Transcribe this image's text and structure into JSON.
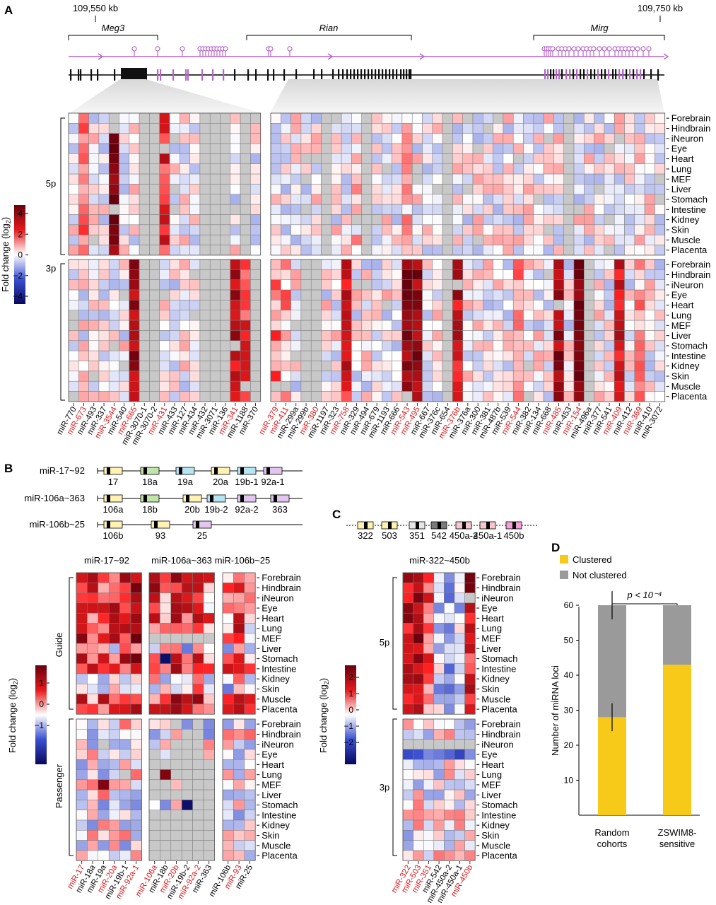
{
  "panel_labels": {
    "a": "A",
    "b": "B",
    "c": "C",
    "d": "D"
  },
  "genome": {
    "left_coord": "109,550 kb",
    "right_coord": "109,750 kb",
    "genes": [
      "Meg3",
      "Rian",
      "Mirg"
    ]
  },
  "tissues": [
    "Forebrain",
    "Hindbrain",
    "iNeuron",
    "Eye",
    "Heart",
    "Lung",
    "MEF",
    "Liver",
    "Stomach",
    "Intestine",
    "Kidney",
    "Skin",
    "Muscle",
    "Placenta"
  ],
  "strand_labels": {
    "five_p": "5p",
    "three_p": "3p",
    "guide": "Guide",
    "passenger": "Passenger"
  },
  "colorbar": {
    "title_text": "Fold change (log",
    "title_sub": "2",
    "title_end": ")",
    "a_ticks": [
      "4",
      "2",
      "0",
      "−2",
      "−4"
    ],
    "b_ticks": [
      "1",
      "0",
      "−1"
    ],
    "c_ticks": [
      "2",
      "1",
      "0",
      "−1",
      "−2"
    ]
  },
  "panel_a": {
    "left_mirnas": [
      {
        "name": "miR-770",
        "red": false
      },
      {
        "name": "miR-673",
        "red": true
      },
      {
        "name": "miR-493",
        "red": false
      },
      {
        "name": "miR-337",
        "red": false
      },
      {
        "name": "miR-3544",
        "red": true
      },
      {
        "name": "miR-540",
        "red": false
      },
      {
        "name": "miR-665",
        "red": true
      },
      {
        "name": "miR-3070-1",
        "red": false
      },
      {
        "name": "miR-3070-2",
        "red": false
      },
      {
        "name": "miR-431",
        "red": true
      },
      {
        "name": "miR-433",
        "red": false
      },
      {
        "name": "miR-127",
        "red": false
      },
      {
        "name": "miR-434",
        "red": false
      },
      {
        "name": "miR-432",
        "red": false
      },
      {
        "name": "miR-3071",
        "red": false
      },
      {
        "name": "miR-136",
        "red": false
      },
      {
        "name": "miR-341",
        "red": true
      },
      {
        "name": "miR-1188",
        "red": false
      },
      {
        "name": "miR-370",
        "red": false
      }
    ],
    "right_mirnas": [
      {
        "name": "miR-379",
        "red": true
      },
      {
        "name": "miR-411",
        "red": true
      },
      {
        "name": "miR-299a",
        "red": false
      },
      {
        "name": "miR-299b",
        "red": false
      },
      {
        "name": "miR-380",
        "red": true
      },
      {
        "name": "miR-1197",
        "red": false
      },
      {
        "name": "miR-323",
        "red": false
      },
      {
        "name": "miR-758",
        "red": true
      },
      {
        "name": "miR-329",
        "red": false
      },
      {
        "name": "miR-494",
        "red": false
      },
      {
        "name": "miR-679",
        "red": false
      },
      {
        "name": "miR-1193",
        "red": false
      },
      {
        "name": "miR-666",
        "red": false
      },
      {
        "name": "miR-543",
        "red": true
      },
      {
        "name": "miR-495",
        "red": true
      },
      {
        "name": "miR-667",
        "red": false
      },
      {
        "name": "miR-376c",
        "red": false
      },
      {
        "name": "miR-654",
        "red": false
      },
      {
        "name": "miR-376b",
        "red": true
      },
      {
        "name": "miR-376a",
        "red": false
      },
      {
        "name": "miR-300",
        "red": false
      },
      {
        "name": "miR-381",
        "red": false
      },
      {
        "name": "miR-487b",
        "red": false
      },
      {
        "name": "miR-539",
        "red": false
      },
      {
        "name": "miR-544",
        "red": true
      },
      {
        "name": "miR-382",
        "red": false
      },
      {
        "name": "miR-134",
        "red": false
      },
      {
        "name": "miR-668",
        "red": false
      },
      {
        "name": "miR-485",
        "red": true
      },
      {
        "name": "miR-453",
        "red": false
      },
      {
        "name": "miR-154",
        "red": true
      },
      {
        "name": "miR-496a",
        "red": false
      },
      {
        "name": "miR-377",
        "red": false
      },
      {
        "name": "miR-541",
        "red": false
      },
      {
        "name": "miR-409",
        "red": true
      },
      {
        "name": "miR-412",
        "red": false
      },
      {
        "name": "miR-369",
        "red": true
      },
      {
        "name": "miR-410",
        "red": false
      },
      {
        "name": "miR-3072",
        "red": false
      }
    ]
  },
  "panel_b": {
    "clusters": [
      {
        "name": "miR-17~92",
        "genes": [
          "17",
          "18a",
          "19a",
          "20a",
          "19b-1",
          "92a-1"
        ]
      },
      {
        "name": "miR-106a~363",
        "genes": [
          "106a",
          "18b",
          "20b",
          "19b-2",
          "92a-2",
          "363"
        ]
      },
      {
        "name": "miR-106b~25",
        "genes": [
          "106b",
          "93",
          "25"
        ]
      }
    ],
    "heatmap_titles": [
      "miR-17~92",
      "miR-106a~363",
      "miR-106b~25"
    ],
    "columns": [
      [
        {
          "name": "miR-17",
          "red": true
        },
        {
          "name": "miR-18a",
          "red": false
        },
        {
          "name": "miR-19a",
          "red": false
        },
        {
          "name": "miR-20a",
          "red": true
        },
        {
          "name": "miR-19b-1",
          "red": false
        },
        {
          "name": "miR-92a-1",
          "red": true
        }
      ],
      [
        {
          "name": "miR-106a",
          "red": true
        },
        {
          "name": "miR-18b",
          "red": false
        },
        {
          "name": "miR-20b",
          "red": true
        },
        {
          "name": "miR-19b-2",
          "red": false
        },
        {
          "name": "miR-92a-2",
          "red": true
        },
        {
          "name": "miR-363",
          "red": false
        }
      ],
      [
        {
          "name": "miR-106b",
          "red": false
        },
        {
          "name": "miR-93",
          "red": true
        },
        {
          "name": "miR-25",
          "red": false
        }
      ]
    ]
  },
  "panel_c": {
    "cluster_title": "miR-322~450b",
    "genes": [
      "322",
      "503",
      "351",
      "542",
      "450a-2",
      "450a-1",
      "450b"
    ],
    "columns": [
      {
        "name": "miR-322",
        "red": true
      },
      {
        "name": "miR-503",
        "red": true
      },
      {
        "name": "miR-351",
        "red": true
      },
      {
        "name": "miR-542",
        "red": false
      },
      {
        "name": "miR-450a-2",
        "red": false
      },
      {
        "name": "miR-450a-1",
        "red": false
      },
      {
        "name": "miR-450b",
        "red": true
      }
    ]
  },
  "chart_data": {
    "type": "bar",
    "categories": [
      "Random\ncohorts",
      "ZSWIM8-\nsensitive"
    ],
    "series": [
      {
        "name": "Clustered",
        "values": [
          28,
          43
        ],
        "errors": [
          4,
          0
        ],
        "color": "#f7c918"
      },
      {
        "name": "Not clustered",
        "values": [
          32,
          17
        ],
        "errors": [
          4,
          0
        ],
        "color": "#9a9a9a"
      }
    ],
    "ylabel": "Number of miRNA loci",
    "ylim": [
      0,
      60
    ],
    "yticks": [
      "10",
      "20",
      "30",
      "40",
      "50",
      "60"
    ],
    "stacked": true,
    "annotation": "p < 10⁻⁴",
    "legend": "top"
  },
  "colors": {
    "red": "#d7191c",
    "darkred": "#67000d",
    "blue": "#2c3fb8",
    "darkblue": "#08085e",
    "gray": "#c8c8c8",
    "genome_purple": "#b567c9"
  }
}
